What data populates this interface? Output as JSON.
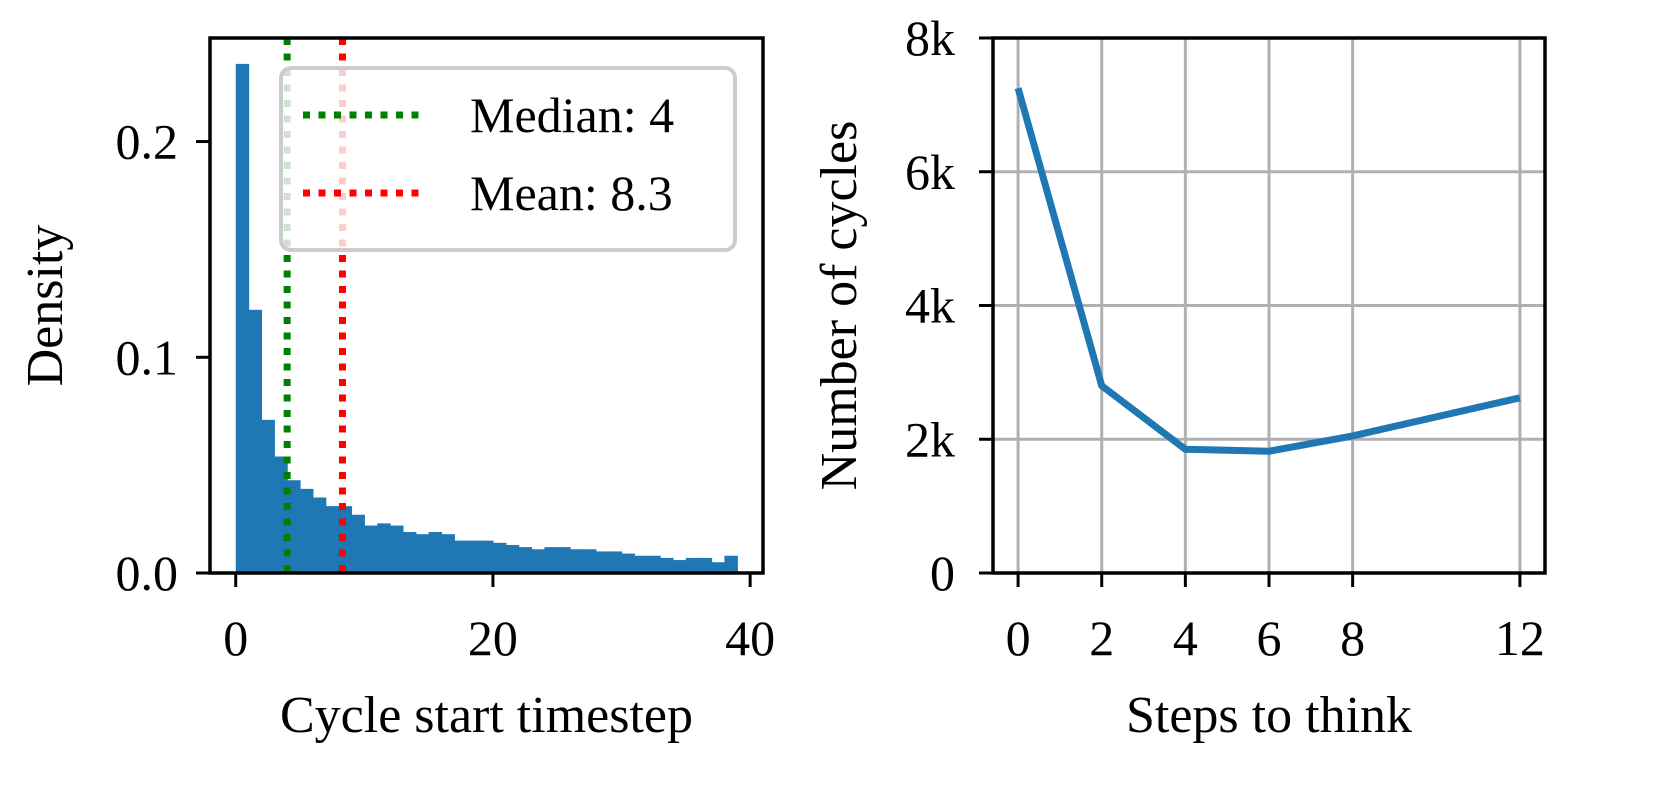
{
  "chart_data": [
    {
      "type": "bar",
      "subtype": "histogram",
      "xlabel": "Cycle start timestep",
      "ylabel": "Density",
      "xlim": [
        -2,
        41
      ],
      "ylim": [
        0,
        0.248
      ],
      "xticks": [
        0,
        20,
        40
      ],
      "xtick_labels": [
        "0",
        "20",
        "40"
      ],
      "yticks": [
        0.0,
        0.1,
        0.2
      ],
      "ytick_labels": [
        "0.0",
        "0.1",
        "0.2"
      ],
      "grid": false,
      "bar_color": "#1f77b4",
      "bin_width": 1,
      "bin_starts": [
        0,
        1,
        2,
        3,
        4,
        5,
        6,
        7,
        8,
        9,
        10,
        11,
        12,
        13,
        14,
        15,
        16,
        17,
        18,
        19,
        20,
        21,
        22,
        23,
        24,
        25,
        26,
        27,
        28,
        29,
        30,
        31,
        32,
        33,
        34,
        35,
        36,
        37,
        38
      ],
      "values": [
        0.236,
        0.122,
        0.071,
        0.054,
        0.043,
        0.039,
        0.035,
        0.031,
        0.031,
        0.027,
        0.022,
        0.023,
        0.022,
        0.019,
        0.018,
        0.019,
        0.018,
        0.015,
        0.015,
        0.015,
        0.014,
        0.013,
        0.012,
        0.011,
        0.012,
        0.012,
        0.011,
        0.011,
        0.01,
        0.01,
        0.009,
        0.008,
        0.008,
        0.007,
        0.006,
        0.007,
        0.007,
        0.005,
        0.008
      ],
      "reference_lines": [
        {
          "label": "Median: 4",
          "x": 4,
          "color": "#008000",
          "style": "dotted"
        },
        {
          "label": "Mean: 8.3",
          "x": 8.3,
          "color": "#ff0000",
          "style": "dotted"
        }
      ],
      "legend_position": "top-right"
    },
    {
      "type": "line",
      "xlabel": "Steps to think",
      "ylabel": "Number of cycles",
      "xlim": [
        -0.6,
        12.6
      ],
      "ylim": [
        0,
        8000
      ],
      "xticks": [
        0,
        2,
        4,
        6,
        8,
        12
      ],
      "xtick_labels": [
        "0",
        "2",
        "4",
        "6",
        "8",
        "12"
      ],
      "yticks": [
        0,
        2000,
        4000,
        6000,
        8000
      ],
      "ytick_labels": [
        "0",
        "2k",
        "4k",
        "6k",
        "8k"
      ],
      "grid": true,
      "series": [
        {
          "x": [
            0,
            2,
            4,
            6,
            8,
            12
          ],
          "values": [
            7250,
            2800,
            1850,
            1820,
            2050,
            2620
          ],
          "color": "#1f77b4"
        }
      ]
    }
  ]
}
